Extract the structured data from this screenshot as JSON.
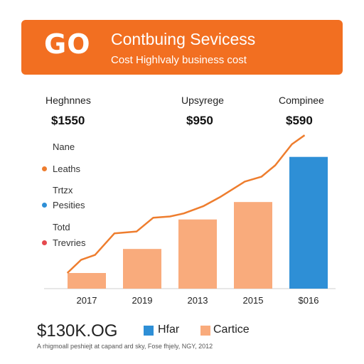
{
  "banner": {
    "logo": "GO",
    "title": "Contbuing Sevicess",
    "subtitle": "Cost Highlvaly business cost",
    "color": "#f26f21"
  },
  "stats": [
    {
      "label": "Heghnnes",
      "value": "$1550"
    },
    {
      "label": "Upsyrege",
      "value": "$950"
    },
    {
      "label": "Compinee",
      "value": "$590"
    }
  ],
  "side_legend": {
    "headings": [
      "Nane",
      "Trtzx",
      "Totd"
    ],
    "items": [
      {
        "label": "Leaths",
        "color": "#ee7d2e"
      },
      {
        "label": "Pesities",
        "color": "#2e8fd6"
      },
      {
        "label": "Trevries",
        "color": "#e5484d"
      }
    ]
  },
  "chart_data": {
    "type": "bar",
    "categories": [
      "2017",
      "2019",
      "2013",
      "2015",
      "$016"
    ],
    "series": [
      {
        "values": [
          26,
          66,
          115,
          144,
          219
        ],
        "color": "#f9ab7c",
        "highlight_color": "#2e8fd6",
        "highlight_index": 4
      }
    ],
    "line": {
      "x": [
        -0.35,
        -0.1,
        0.15,
        0.5,
        0.9,
        1.2,
        1.5,
        1.75,
        2.1,
        2.4,
        2.85,
        3.15,
        3.4,
        3.7,
        3.93
      ],
      "y": [
        26,
        48,
        56,
        92,
        95,
        118,
        120,
        125,
        137,
        152,
        178,
        186,
        205,
        240,
        255
      ],
      "color": "#ee7d2e"
    },
    "ylim": [
      0,
      260
    ],
    "title": "",
    "xlabel": "",
    "ylabel": ""
  },
  "footer": {
    "total": "$130K.OG",
    "legend": [
      {
        "label": "Hfar",
        "color": "#2e8fd6"
      },
      {
        "label": "Cartice",
        "color": "#f9ab7c"
      }
    ],
    "note": "A rhigmoall peshiejt at capand ard sky, Fose fhjely, NGY, 2012"
  }
}
